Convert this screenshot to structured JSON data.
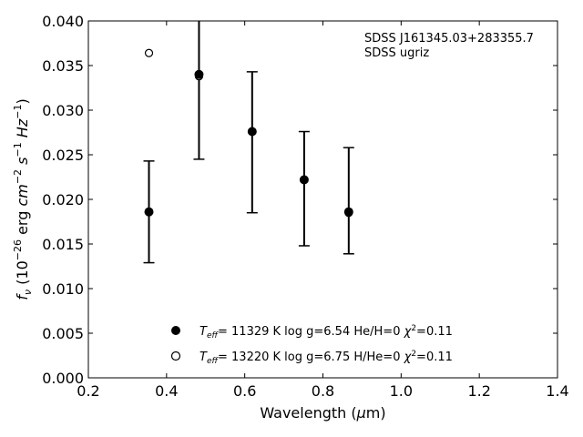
{
  "chart_data": {
    "type": "scatter",
    "xlabel": "Wavelength (μm)",
    "ylabel": "fν (10⁻²⁶ erg cm⁻² s⁻¹ Hz⁻¹)",
    "xlim": [
      0.2,
      1.4
    ],
    "ylim": [
      0.0,
      0.04
    ],
    "x_ticks": [
      "0.2",
      "0.4",
      "0.6",
      "0.8",
      "1.0",
      "1.2",
      "1.4"
    ],
    "y_ticks": [
      "0.000",
      "0.005",
      "0.010",
      "0.015",
      "0.020",
      "0.025",
      "0.030",
      "0.035",
      "0.040"
    ],
    "annotation": [
      "SDSS J161345.03+283355.7",
      "SDSS ugriz"
    ],
    "observed": {
      "x": [
        0.355,
        0.483,
        0.619,
        0.752,
        0.866
      ],
      "y": [
        0.0186,
        0.034,
        0.0276,
        0.0222,
        0.0186
      ],
      "yerr_low": [
        0.0129,
        0.0245,
        0.0185,
        0.0148,
        0.0139
      ],
      "yerr_high": [
        0.0243,
        0.041,
        0.0343,
        0.0276,
        0.0258
      ]
    },
    "series": [
      {
        "name": "Teff= 11329 K  log g=6.54  He/H=0  χ²=0.11",
        "marker": "filled-circle",
        "x": [
          0.355,
          0.483,
          0.619,
          0.752,
          0.866
        ],
        "y": [
          0.0186,
          0.034,
          0.0276,
          0.0222,
          0.0186
        ]
      },
      {
        "name": "Teff= 13220 K  log g=6.75  H/He=0  χ²=0.11",
        "marker": "open-circle",
        "x": [
          0.355,
          0.483,
          0.619,
          0.752,
          0.866
        ],
        "y": [
          0.0364,
          0.0338,
          0.0276,
          0.0222,
          0.0185
        ]
      }
    ],
    "legend": {
      "position": "bottom-center",
      "entries": [
        {
          "teff": "11329",
          "logg": "6.54",
          "comp": "He/H=0",
          "chi2": "0.11"
        },
        {
          "teff": "13220",
          "logg": "6.75",
          "comp": "H/He=0",
          "chi2": "0.11"
        }
      ]
    }
  }
}
